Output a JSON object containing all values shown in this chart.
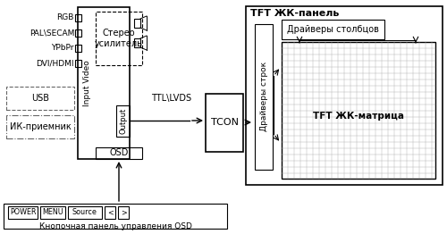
{
  "bg_color": "#ffffff",
  "label_rgb": "RGB",
  "label_pal": "PAL\\SECAM",
  "label_ypbpr": "YPbPr",
  "label_dvi": "DVI/HDMI",
  "label_usb": "USB",
  "label_ir": "ИК-приемник",
  "label_input_video": "Input Video",
  "label_stereo": "Стерео\nусилитель",
  "label_ttl": "TTL\\LVDS",
  "label_output": "Output",
  "label_osd": "OSD",
  "label_tcon": "TCON",
  "label_row_drivers": "Драйверы строк",
  "label_col_drivers": "Драйверы столбцов",
  "label_matrix": "TFT ЖК-матрица",
  "label_tft_panel": "TFT ЖК-панель",
  "label_kbd": "Кнопочная панель управления OSD",
  "btn_power": "POWER",
  "btn_menu": "MENU",
  "btn_source": "Source",
  "btn_lt": "<",
  "btn_gt": ">",
  "lc": "#000000",
  "dc": "#666666"
}
